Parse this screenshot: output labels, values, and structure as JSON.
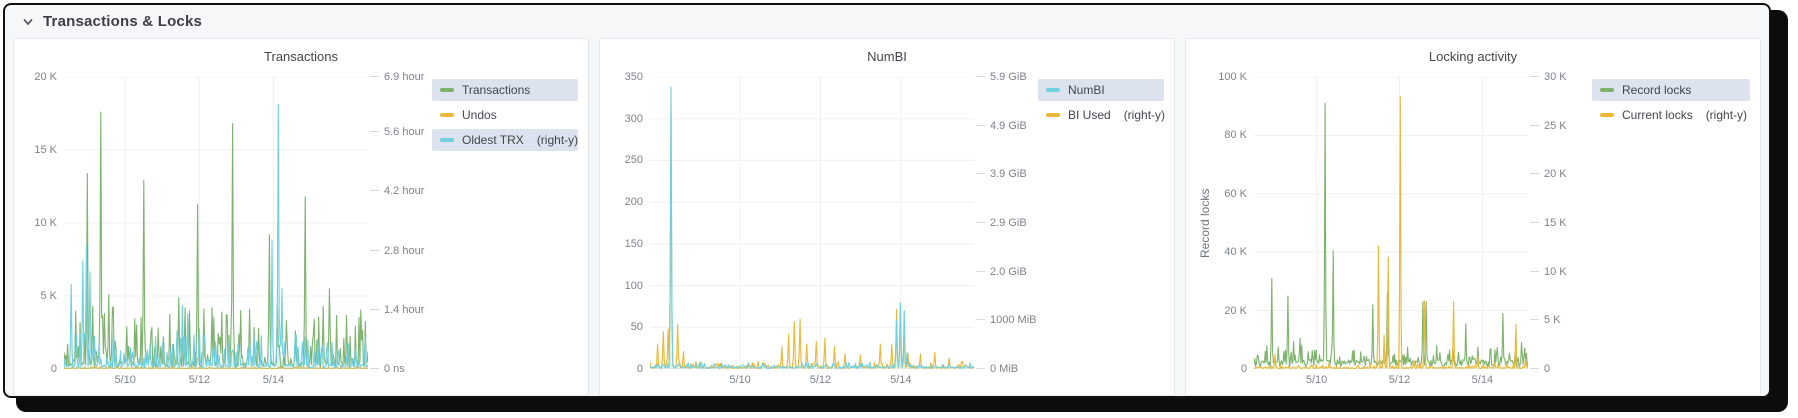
{
  "header": {
    "title": "Transactions & Locks"
  },
  "palette": {
    "green": "#7eb26d",
    "yellow": "#eab839",
    "cyan": "#6ed0e0",
    "legend_highlight": "#dde3ee",
    "grid": "#eef0f3",
    "tick_text": "#7d828a",
    "title_text": "#42464c"
  },
  "chart_data": [
    {
      "type": "line",
      "title": "Transactions",
      "legend_position": "right",
      "y_axis_label": "",
      "x_axis": {
        "min": 8.35,
        "max": 16.55,
        "ticks": [
          {
            "v": 10,
            "label": "5/10"
          },
          {
            "v": 12,
            "label": "5/12"
          },
          {
            "v": 14,
            "label": "5/14"
          }
        ]
      },
      "left_axis": {
        "min": 0,
        "max": 20000,
        "ticks": [
          {
            "v": 0,
            "label": "0"
          },
          {
            "v": 5000,
            "label": "5 K"
          },
          {
            "v": 10000,
            "label": "10 K"
          },
          {
            "v": 15000,
            "label": "15 K"
          },
          {
            "v": 20000,
            "label": "20 K"
          }
        ]
      },
      "right_axis": {
        "min": 0,
        "max": 6.9,
        "ticks": [
          {
            "v": 0,
            "label": "0 ns"
          },
          {
            "v": 1.4,
            "label": "1.4 hour"
          },
          {
            "v": 2.8,
            "label": "2.8 hour"
          },
          {
            "v": 4.2,
            "label": "4.2 hour"
          },
          {
            "v": 5.6,
            "label": "5.6 hour"
          },
          {
            "v": 6.9,
            "label": "6.9 hour"
          }
        ]
      },
      "legend": [
        {
          "label": "Transactions",
          "suffix": "",
          "color": "#7eb26d",
          "highlighted": true
        },
        {
          "label": "Undos",
          "suffix": "",
          "color": "#eab839",
          "highlighted": false
        },
        {
          "label": "Oldest TRX",
          "suffix": "(right-y)",
          "color": "#6ed0e0",
          "highlighted": true
        }
      ],
      "series": [
        {
          "name": "Undos",
          "color": "#eab839",
          "axis": "left",
          "fill_opacity": 0.18,
          "baseline": 60,
          "noise_band": 110,
          "peaks": []
        },
        {
          "name": "Transactions",
          "color": "#7eb26d",
          "axis": "left",
          "fill_opacity": 0.07,
          "baseline": 420,
          "noise_band": 3800,
          "peaks": [
            [
              8.97,
              13400
            ],
            [
              9.12,
              4300
            ],
            [
              9.33,
              17600
            ],
            [
              9.45,
              3800
            ],
            [
              9.55,
              5100
            ],
            [
              9.65,
              4200
            ],
            [
              10.05,
              2900
            ],
            [
              10.3,
              3000
            ],
            [
              10.5,
              12900
            ],
            [
              10.7,
              2500
            ],
            [
              10.9,
              2800
            ],
            [
              11.2,
              2600
            ],
            [
              11.45,
              4900
            ],
            [
              11.62,
              4200
            ],
            [
              11.95,
              11300
            ],
            [
              12.12,
              4100
            ],
            [
              12.35,
              4200
            ],
            [
              12.6,
              3900
            ],
            [
              12.9,
              16800
            ],
            [
              13.12,
              4000
            ],
            [
              13.35,
              4100
            ],
            [
              13.6,
              2800
            ],
            [
              13.9,
              9200
            ],
            [
              14.1,
              4400
            ],
            [
              14.35,
              3300
            ],
            [
              14.6,
              2600
            ],
            [
              14.85,
              11800
            ],
            [
              15.1,
              3400
            ],
            [
              15.35,
              4300
            ],
            [
              15.5,
              5500
            ]
          ]
        },
        {
          "name": "Oldest TRX",
          "color": "#6ed0e0",
          "axis": "right",
          "fill_opacity": 0.12,
          "baseline": 0.09,
          "noise_band": 0.8,
          "peaks": [
            [
              8.55,
              2.0
            ],
            [
              8.7,
              0.8
            ],
            [
              8.85,
              2.55
            ],
            [
              8.95,
              2.9
            ],
            [
              9.05,
              2.3
            ],
            [
              9.3,
              0.6
            ],
            [
              10.15,
              0.5
            ],
            [
              10.6,
              0.45
            ],
            [
              11.0,
              0.6
            ],
            [
              11.4,
              0.9
            ],
            [
              11.55,
              1.5
            ],
            [
              11.7,
              1.3
            ],
            [
              11.85,
              0.8
            ],
            [
              12.0,
              0.95
            ],
            [
              12.15,
              0.8
            ],
            [
              12.4,
              0.5
            ],
            [
              12.9,
              0.45
            ],
            [
              13.3,
              0.5
            ],
            [
              13.97,
              3.05
            ],
            [
              14.12,
              6.25
            ],
            [
              14.22,
              1.9
            ],
            [
              14.6,
              0.75
            ],
            [
              15.2,
              0.55
            ],
            [
              15.45,
              0.4
            ]
          ]
        }
      ]
    },
    {
      "type": "line",
      "title": "NumBI",
      "legend_position": "right",
      "y_axis_label": "",
      "x_axis": {
        "min": 7.76,
        "max": 15.82,
        "ticks": [
          {
            "v": 10,
            "label": "5/10"
          },
          {
            "v": 12,
            "label": "5/12"
          },
          {
            "v": 14,
            "label": "5/14"
          }
        ]
      },
      "left_axis": {
        "min": 0,
        "max": 350,
        "ticks": [
          {
            "v": 0,
            "label": "0"
          },
          {
            "v": 50,
            "label": "50"
          },
          {
            "v": 100,
            "label": "100"
          },
          {
            "v": 150,
            "label": "150"
          },
          {
            "v": 200,
            "label": "200"
          },
          {
            "v": 250,
            "label": "250"
          },
          {
            "v": 300,
            "label": "300"
          },
          {
            "v": 350,
            "label": "350"
          }
        ]
      },
      "right_axis": {
        "min": 0,
        "max": 5.86,
        "ticks": [
          {
            "v": 0,
            "label": "0 MiB"
          },
          {
            "v": 0.977,
            "label": "1000 MiB"
          },
          {
            "v": 1.953,
            "label": "2.0 GiB"
          },
          {
            "v": 2.93,
            "label": "2.9 GiB"
          },
          {
            "v": 3.906,
            "label": "3.9 GiB"
          },
          {
            "v": 4.883,
            "label": "4.9 GiB"
          },
          {
            "v": 5.86,
            "label": "5.9 GiB"
          }
        ]
      },
      "legend": [
        {
          "label": "NumBI",
          "suffix": "",
          "color": "#6ed0e0",
          "highlighted": true
        },
        {
          "label": "BI Used",
          "suffix": "(right-y)",
          "color": "#eab839",
          "highlighted": false
        }
      ],
      "series": [
        {
          "name": "BI Used",
          "color": "#eab839",
          "axis": "right",
          "fill_opacity": 0.16,
          "baseline": 0.03,
          "noise_band": 0.12,
          "peaks": [
            [
              7.95,
              0.5
            ],
            [
              8.1,
              0.75
            ],
            [
              8.2,
              0.8
            ],
            [
              8.28,
              5.3
            ],
            [
              8.45,
              0.9
            ],
            [
              8.6,
              0.35
            ],
            [
              8.9,
              0.15
            ],
            [
              11.05,
              0.45
            ],
            [
              11.2,
              0.7
            ],
            [
              11.35,
              0.95
            ],
            [
              11.5,
              1.0
            ],
            [
              11.65,
              0.5
            ],
            [
              11.9,
              0.55
            ],
            [
              12.1,
              0.62
            ],
            [
              12.35,
              0.45
            ],
            [
              12.6,
              0.3
            ],
            [
              13.0,
              0.28
            ],
            [
              13.5,
              0.5
            ],
            [
              13.78,
              0.5
            ],
            [
              13.9,
              1.2
            ],
            [
              14.0,
              1.33
            ],
            [
              14.08,
              0.65
            ],
            [
              14.18,
              0.3
            ],
            [
              14.5,
              0.3
            ],
            [
              14.85,
              0.33
            ],
            [
              15.2,
              0.22
            ],
            [
              15.5,
              0.15
            ]
          ]
        },
        {
          "name": "NumBI",
          "color": "#6ed0e0",
          "axis": "left",
          "fill_opacity": 0.12,
          "baseline": 2.5,
          "noise_band": 6,
          "peaks": [
            [
              8.28,
              338
            ],
            [
              13.9,
              58
            ],
            [
              14.0,
              79
            ],
            [
              14.08,
              70
            ],
            [
              14.15,
              20
            ]
          ]
        }
      ]
    },
    {
      "type": "line",
      "title": "Locking activity",
      "legend_position": "right",
      "y_axis_label": "Record locks",
      "x_axis": {
        "min": 8.49,
        "max": 15.1,
        "ticks": [
          {
            "v": 10,
            "label": "5/10"
          },
          {
            "v": 12,
            "label": "5/12"
          },
          {
            "v": 14,
            "label": "5/14"
          }
        ]
      },
      "left_axis": {
        "min": 0,
        "max": 100000,
        "ticks": [
          {
            "v": 0,
            "label": "0"
          },
          {
            "v": 20000,
            "label": "20 K"
          },
          {
            "v": 40000,
            "label": "40 K"
          },
          {
            "v": 60000,
            "label": "60 K"
          },
          {
            "v": 80000,
            "label": "80 K"
          },
          {
            "v": 100000,
            "label": "100 K"
          }
        ]
      },
      "right_axis": {
        "min": 0,
        "max": 30000,
        "ticks": [
          {
            "v": 0,
            "label": "0"
          },
          {
            "v": 5000,
            "label": "5 K"
          },
          {
            "v": 10000,
            "label": "10 K"
          },
          {
            "v": 15000,
            "label": "15 K"
          },
          {
            "v": 20000,
            "label": "20 K"
          },
          {
            "v": 25000,
            "label": "25 K"
          },
          {
            "v": 30000,
            "label": "30 K"
          }
        ]
      },
      "legend": [
        {
          "label": "Record locks",
          "suffix": "",
          "color": "#7eb26d",
          "highlighted": true
        },
        {
          "label": "Current locks",
          "suffix": "(right-y)",
          "color": "#eab839",
          "highlighted": false
        }
      ],
      "series": [
        {
          "name": "Record locks",
          "color": "#7eb26d",
          "axis": "left",
          "fill_opacity": 0.08,
          "baseline": 2600,
          "noise_band": 5200,
          "peaks": [
            [
              8.8,
              8000
            ],
            [
              8.92,
              31000
            ],
            [
              9.08,
              7500
            ],
            [
              9.3,
              25000
            ],
            [
              9.45,
              9500
            ],
            [
              9.6,
              10500
            ],
            [
              9.8,
              6000
            ],
            [
              10.2,
              91000
            ],
            [
              10.4,
              40500
            ],
            [
              10.9,
              6500
            ],
            [
              11.35,
              22000
            ],
            [
              11.7,
              26000
            ],
            [
              12.2,
              7500
            ],
            [
              12.56,
              23000
            ],
            [
              12.64,
              23000
            ],
            [
              12.9,
              8000
            ],
            [
              13.2,
              6500
            ],
            [
              13.6,
              15500
            ],
            [
              13.9,
              7500
            ],
            [
              14.2,
              7000
            ],
            [
              14.5,
              19000
            ],
            [
              14.95,
              9000
            ],
            [
              15.02,
              7200
            ]
          ]
        },
        {
          "name": "Current locks",
          "color": "#eab839",
          "axis": "right",
          "fill_opacity": 0.12,
          "baseline": 120,
          "noise_band": 420,
          "peaks": [
            [
              9.0,
              1500
            ],
            [
              10.3,
              700
            ],
            [
              11.5,
              12600
            ],
            [
              11.62,
              3500
            ],
            [
              11.72,
              11500
            ],
            [
              12.02,
              28000
            ],
            [
              12.35,
              900
            ],
            [
              12.6,
              7000
            ],
            [
              13.3,
              7000
            ],
            [
              13.9,
              1300
            ],
            [
              14.3,
              700
            ],
            [
              14.8,
              4600
            ],
            [
              15.05,
              1000
            ]
          ]
        }
      ]
    }
  ]
}
